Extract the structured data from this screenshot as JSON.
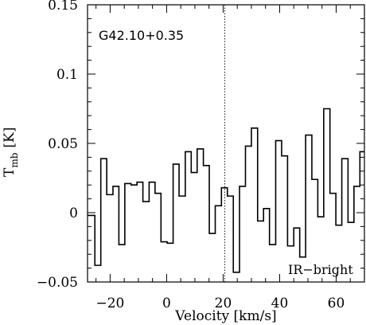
{
  "chart_data": {
    "type": "line",
    "step": true,
    "source_label": "G42.10+0.35",
    "corner_label": "IR−bright",
    "xlabel": "Velocity [km/s]",
    "ylabel_main": "T",
    "ylabel_sub": "mb",
    "ylabel_unit": "[K]",
    "xlim": [
      -28,
      70
    ],
    "ylim": [
      -0.05,
      0.15
    ],
    "x_ticks": [
      -20,
      0,
      20,
      40,
      60
    ],
    "x_tick_labels": [
      "−20",
      "0",
      "20",
      "40",
      "60"
    ],
    "y_ticks": [
      -0.05,
      0,
      0.05,
      0.1,
      0.15
    ],
    "y_tick_labels": [
      "−0.05",
      "0",
      "0.05",
      "0.1",
      "0.15"
    ],
    "reference_line_x": 20.6,
    "grid": false,
    "series": [
      {
        "line_x": [
          -27.6,
          -25.4,
          -23.3,
          -21.2,
          -19.0,
          -16.9,
          -14.8,
          -12.6,
          -10.5,
          -8.4,
          -6.2,
          -4.1,
          -2.0,
          0.2,
          2.3,
          4.4,
          6.6,
          8.7,
          10.8,
          13.0,
          15.1,
          17.2,
          19.4,
          21.5,
          23.6,
          25.8,
          27.9,
          30.0,
          32.2,
          34.3,
          36.4,
          38.6,
          40.7,
          42.8,
          45.0,
          47.1,
          49.2,
          51.4,
          53.5,
          55.6,
          57.8,
          59.9,
          62.0,
          64.2,
          66.3,
          68.4
        ],
        "values": [
          -0.002,
          -0.038,
          0.039,
          0.013,
          0.019,
          -0.023,
          0.021,
          0.02,
          0.022,
          0.008,
          0.022,
          0.014,
          -0.021,
          -0.022,
          0.035,
          0.012,
          0.044,
          0.029,
          0.046,
          0.034,
          -0.015,
          0.005,
          0.018,
          0.012,
          -0.043,
          0.019,
          0.048,
          0.061,
          -0.006,
          0.003,
          -0.023,
          0.052,
          0.041,
          -0.024,
          -0.011,
          -0.032,
          0.056,
          0.024,
          -0.003,
          0.075,
          0.014,
          -0.009,
          0.039,
          -0.007,
          0.019,
          0.044
        ]
      }
    ]
  }
}
